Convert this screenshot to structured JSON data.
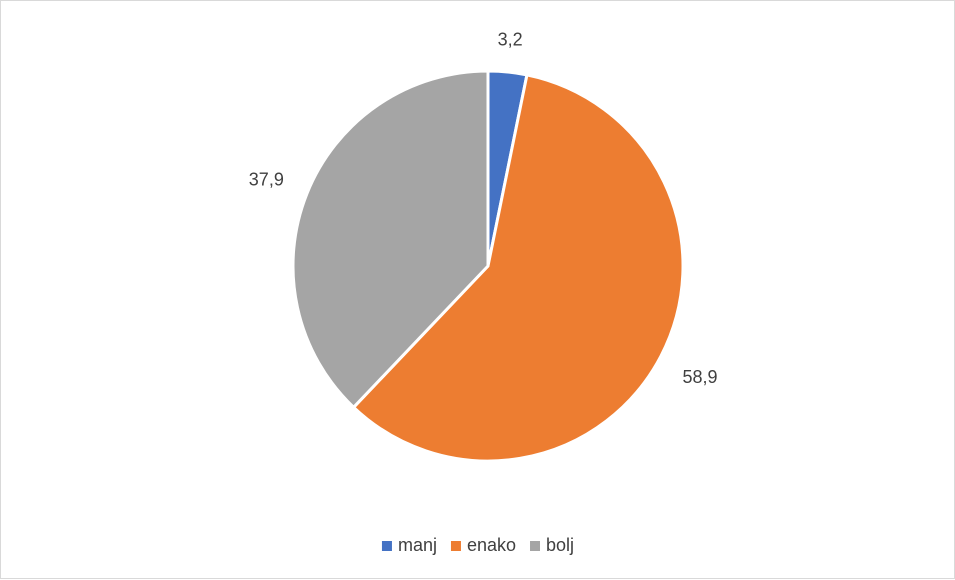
{
  "chart_data": {
    "type": "pie",
    "categories": [
      "manj",
      "enako",
      "bolj"
    ],
    "values": [
      3.2,
      58.9,
      37.9
    ],
    "value_labels": [
      "3,2",
      "58,9",
      "37,9"
    ],
    "colors": [
      "#4472c4",
      "#ed7d31",
      "#a5a5a5"
    ],
    "title": "",
    "legend_position": "bottom"
  }
}
